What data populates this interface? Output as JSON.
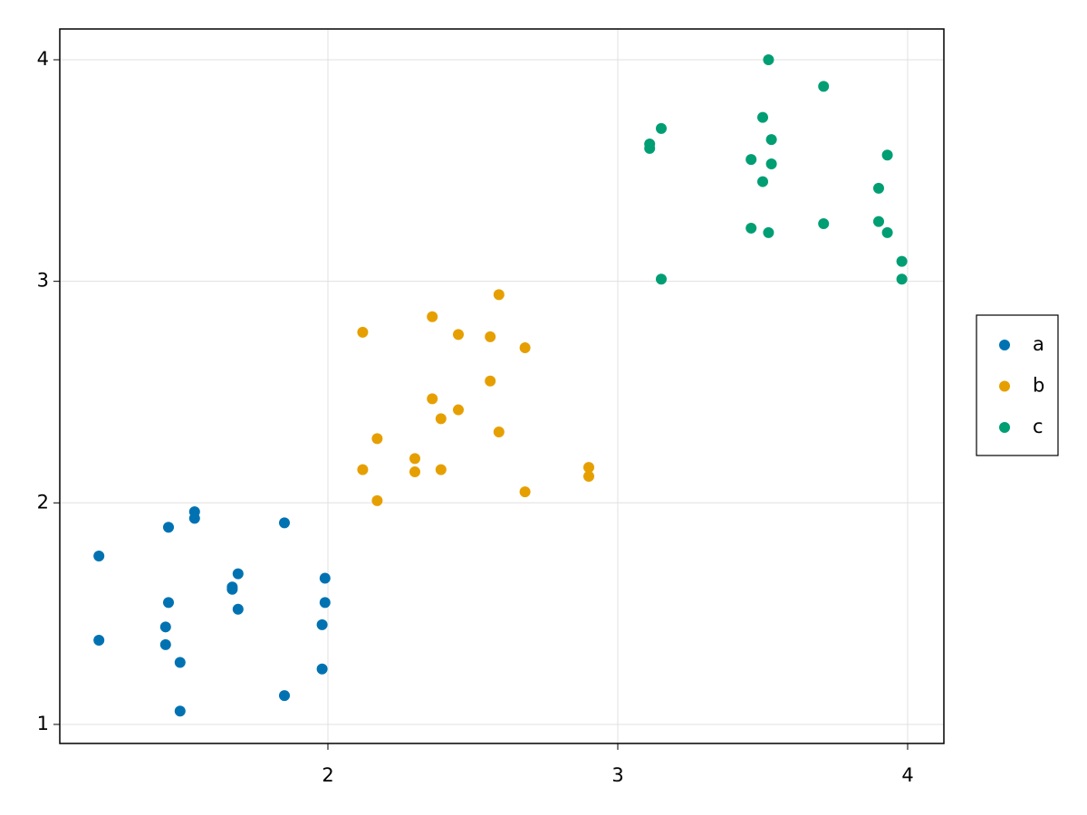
{
  "chart_data": {
    "type": "scatter",
    "series": [
      {
        "name": "a",
        "color": "#0072b2",
        "x": [
          1.21,
          1.21,
          1.45,
          1.54,
          1.54,
          1.45,
          1.44,
          1.44,
          1.49,
          1.49,
          1.67,
          1.67,
          1.69,
          1.69,
          1.85,
          1.85,
          1.99,
          1.99,
          1.98,
          1.98
        ],
        "values": [
          1.76,
          1.38,
          1.89,
          1.96,
          1.93,
          1.55,
          1.44,
          1.36,
          1.28,
          1.06,
          1.62,
          1.61,
          1.68,
          1.52,
          1.91,
          1.13,
          1.66,
          1.55,
          1.45,
          1.25
        ]
      },
      {
        "name": "b",
        "color": "#e69f00",
        "x": [
          2.12,
          2.12,
          2.17,
          2.17,
          2.3,
          2.3,
          2.36,
          2.36,
          2.39,
          2.39,
          2.45,
          2.45,
          2.56,
          2.56,
          2.59,
          2.59,
          2.68,
          2.68,
          2.9,
          2.9
        ],
        "values": [
          2.77,
          2.15,
          2.29,
          2.01,
          2.2,
          2.14,
          2.84,
          2.47,
          2.38,
          2.15,
          2.76,
          2.42,
          2.75,
          2.55,
          2.94,
          2.32,
          2.7,
          2.05,
          2.16,
          2.12
        ]
      },
      {
        "name": "c",
        "color": "#009e73",
        "x": [
          3.11,
          3.11,
          3.15,
          3.15,
          3.46,
          3.46,
          3.5,
          3.5,
          3.52,
          3.53,
          3.53,
          3.52,
          3.71,
          3.71,
          3.9,
          3.9,
          3.93,
          3.93,
          3.98,
          3.98
        ],
        "values": [
          3.62,
          3.6,
          3.69,
          3.01,
          3.55,
          3.24,
          3.74,
          3.45,
          4.0,
          3.64,
          3.53,
          3.22,
          3.88,
          3.26,
          3.42,
          3.27,
          3.57,
          3.22,
          3.09,
          3.01
        ]
      }
    ],
    "xlim": [
      1.075,
      4.125
    ],
    "ylim": [
      0.914,
      4.139
    ],
    "xticks": [
      2,
      3,
      4
    ],
    "yticks": [
      1,
      2,
      3,
      4
    ],
    "grid": true,
    "legend": "right"
  }
}
